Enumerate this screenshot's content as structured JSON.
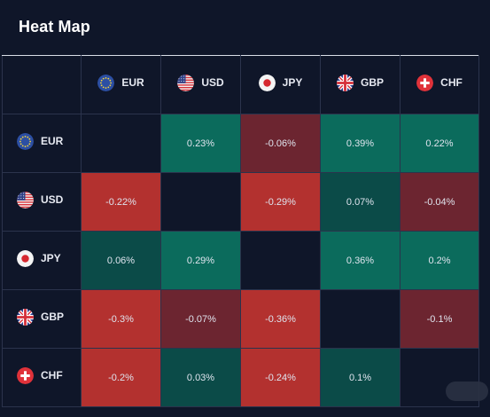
{
  "title": "Heat Map",
  "colors": {
    "background": "#0f1629",
    "positive_strong": "#0b6b5c",
    "positive_weak": "#0b4b48",
    "negative_strong": "#b3312f",
    "negative_weak": "#6c2530"
  },
  "currencies": [
    {
      "code": "EUR",
      "icon": "eu-flag-icon"
    },
    {
      "code": "USD",
      "icon": "us-flag-icon"
    },
    {
      "code": "JPY",
      "icon": "jp-flag-icon"
    },
    {
      "code": "GBP",
      "icon": "uk-flag-icon"
    },
    {
      "code": "CHF",
      "icon": "ch-flag-icon"
    }
  ],
  "rows": [
    {
      "cells": [
        {
          "text": "",
          "tone": "empty"
        },
        {
          "text": "0.23%",
          "tone": "positive_strong"
        },
        {
          "text": "-0.06%",
          "tone": "negative_weak"
        },
        {
          "text": "0.39%",
          "tone": "positive_strong"
        },
        {
          "text": "0.22%",
          "tone": "positive_strong"
        }
      ]
    },
    {
      "cells": [
        {
          "text": "-0.22%",
          "tone": "negative_strong"
        },
        {
          "text": "",
          "tone": "empty"
        },
        {
          "text": "-0.29%",
          "tone": "negative_strong"
        },
        {
          "text": "0.07%",
          "tone": "positive_weak"
        },
        {
          "text": "-0.04%",
          "tone": "negative_weak"
        }
      ]
    },
    {
      "cells": [
        {
          "text": "0.06%",
          "tone": "positive_weak"
        },
        {
          "text": "0.29%",
          "tone": "positive_strong"
        },
        {
          "text": "",
          "tone": "empty"
        },
        {
          "text": "0.36%",
          "tone": "positive_strong"
        },
        {
          "text": "0.2%",
          "tone": "positive_strong"
        }
      ]
    },
    {
      "cells": [
        {
          "text": "-0.3%",
          "tone": "negative_strong"
        },
        {
          "text": "-0.07%",
          "tone": "negative_weak"
        },
        {
          "text": "-0.36%",
          "tone": "negative_strong"
        },
        {
          "text": "",
          "tone": "empty"
        },
        {
          "text": "-0.1%",
          "tone": "negative_weak"
        }
      ]
    },
    {
      "cells": [
        {
          "text": "-0.2%",
          "tone": "negative_strong"
        },
        {
          "text": "0.03%",
          "tone": "positive_weak"
        },
        {
          "text": "-0.24%",
          "tone": "negative_strong"
        },
        {
          "text": "0.1%",
          "tone": "positive_weak"
        },
        {
          "text": "",
          "tone": "empty"
        }
      ]
    }
  ]
}
